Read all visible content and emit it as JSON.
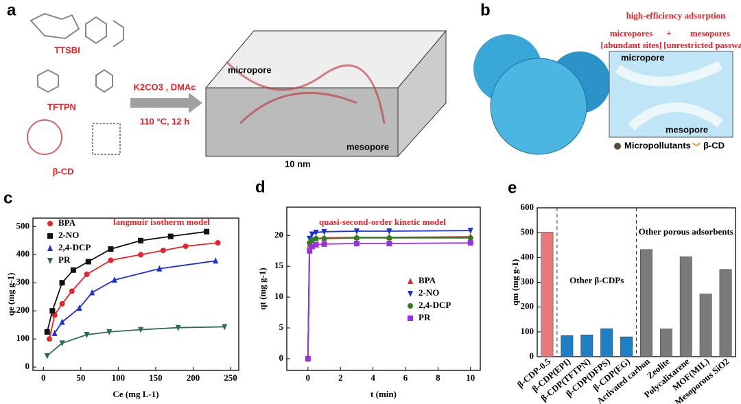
{
  "panel_a": {
    "letter": "a",
    "molecules": [
      "TTSBI",
      "TFTPN",
      "β-CD"
    ],
    "conditions": [
      "K2CO3 , DMAc",
      "110 °C, 12 h"
    ],
    "box_labels": [
      "micropore",
      "mesopore",
      "10 nm"
    ]
  },
  "panel_b": {
    "letter": "b",
    "headline": "high-efficiency adsorption",
    "pores": [
      "micropores",
      "+",
      "mesopores"
    ],
    "notes": [
      "[abundant sites]",
      "[unrestricted passway]"
    ],
    "inset_labels": [
      "micropore",
      "mesopore"
    ],
    "legend": [
      "Micropollutants",
      "β-CD"
    ]
  },
  "chart_data": [
    {
      "type": "line",
      "panel_label": "c",
      "annotation": "langmuir isotherm model",
      "x_label": "Ce (mg L-1)",
      "y_label": "qe (mg g-1)",
      "xlim": [
        -14,
        261
      ],
      "ylim": [
        -12,
        530
      ],
      "xticks": [
        0,
        50,
        100,
        150,
        200,
        250
      ],
      "yticks": [
        0,
        100,
        200,
        300,
        400,
        500
      ],
      "legend": "upper left",
      "series": [
        {
          "name": "BPA",
          "color": "#e8242b",
          "marker": "circle",
          "x": [
            8,
            15,
            25,
            38,
            58,
            90,
            130,
            160,
            190,
            233
          ],
          "values": [
            100,
            185,
            225,
            270,
            330,
            380,
            400,
            415,
            430,
            442
          ]
        },
        {
          "name": "2-NO",
          "color": "#111111",
          "marker": "square",
          "x": [
            5,
            12,
            25,
            40,
            60,
            90,
            130,
            170,
            218
          ],
          "values": [
            125,
            200,
            300,
            345,
            375,
            420,
            450,
            465,
            482
          ]
        },
        {
          "name": "2,4-DCP",
          "color": "#1c2de0",
          "marker": "triangle",
          "x": [
            15,
            25,
            48,
            65,
            95,
            155,
            230
          ],
          "values": [
            120,
            160,
            210,
            265,
            310,
            350,
            378
          ]
        },
        {
          "name": "PR",
          "color": "#2d6b55",
          "marker": "triangle-down",
          "x": [
            5,
            25,
            58,
            88,
            130,
            180,
            242
          ],
          "values": [
            40,
            85,
            115,
            125,
            133,
            140,
            143
          ]
        }
      ]
    },
    {
      "type": "line",
      "panel_label": "d",
      "annotation": "quasi-second-order kinetic model",
      "x_label": "t (min)",
      "y_label": "qt (mg g-1)",
      "xlim": [
        -1.3,
        10.6
      ],
      "ylim": [
        -1.9,
        24.6
      ],
      "xticks": [
        0,
        2,
        4,
        6,
        8,
        10
      ],
      "yticks": [
        0,
        5,
        10,
        15,
        20
      ],
      "legend": "center right",
      "series": [
        {
          "name": "BPA",
          "color": "#e8242b",
          "marker": "triangle",
          "x": [
            0,
            0.1,
            0.25,
            0.5,
            1,
            3,
            5,
            10
          ],
          "values": [
            0,
            18.5,
            19.2,
            19.5,
            19.6,
            19.7,
            19.7,
            19.8
          ]
        },
        {
          "name": "2-NO",
          "color": "#1c2de0",
          "marker": "triangle-down",
          "x": [
            0,
            0.1,
            0.25,
            0.5,
            1,
            3,
            5,
            10
          ],
          "values": [
            0,
            19.5,
            20.2,
            20.5,
            20.6,
            20.7,
            20.7,
            20.8
          ]
        },
        {
          "name": "2,4-DCP",
          "color": "#2e7d1e",
          "marker": "circle",
          "x": [
            0,
            0.1,
            0.25,
            0.5,
            1,
            3,
            5,
            10
          ],
          "values": [
            0,
            18.8,
            19.3,
            19.5,
            19.5,
            19.6,
            19.6,
            19.6
          ]
        },
        {
          "name": "PR",
          "color": "#9b30e0",
          "marker": "square",
          "x": [
            0,
            0.1,
            0.25,
            0.5,
            1,
            3,
            5,
            10
          ],
          "values": [
            0,
            17.5,
            18.2,
            18.5,
            18.6,
            18.7,
            18.7,
            18.8
          ]
        }
      ]
    },
    {
      "type": "bar",
      "panel_label": "e",
      "annotations": [
        "Other β-CDPs",
        "Other porous adsorbents"
      ],
      "y_label": "qm (mg g-1)",
      "ylim": [
        0,
        600
      ],
      "yticks": [
        0,
        100,
        200,
        300,
        400,
        500,
        600
      ],
      "categories": [
        "β-CDP-0.5",
        "β-CDP(EPI)",
        "β-CDP(TFTPN)",
        "β-CDP(DFPS)",
        "β-CDP(EG)",
        "Activated carbon",
        "Zeolite",
        "Polycalixarene",
        "MOF(MIL)",
        "Mesoporous SiO2"
      ],
      "values": [
        502,
        85,
        88,
        113,
        80,
        432,
        112,
        403,
        253,
        352
      ],
      "colors": [
        "#e87a7c",
        "#1e7fc4",
        "#1e7fc4",
        "#1e7fc4",
        "#1e7fc4",
        "#7a7a7a",
        "#7a7a7a",
        "#7a7a7a",
        "#7a7a7a",
        "#7a7a7a"
      ]
    }
  ]
}
